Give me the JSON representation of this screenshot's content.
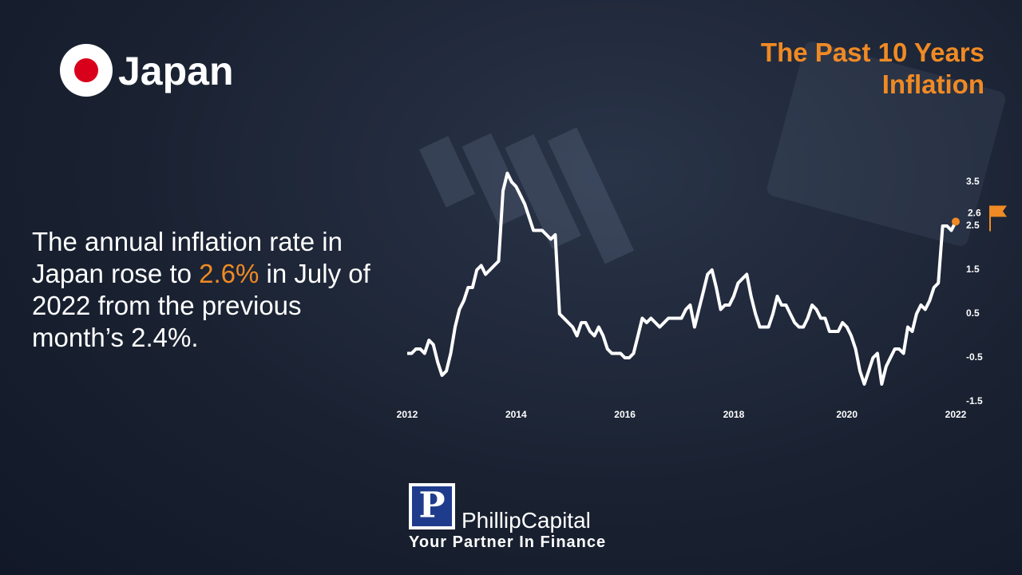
{
  "header": {
    "country": "Japan",
    "title": [
      "The Past 10 Years",
      "Inflation"
    ]
  },
  "body": {
    "parts": [
      "The annual inflation rate in Japan rose to ",
      "2.6%",
      " in July of 2022 from the previous month’s 2.4%."
    ]
  },
  "logo": {
    "mark": "P",
    "name": "PhillipCapital",
    "tagline": "Your Partner In Finance"
  },
  "chart_data": {
    "type": "line",
    "categories": [
      "2012",
      null,
      null,
      null,
      null,
      null,
      null,
      null,
      null,
      null,
      null,
      null,
      null,
      null,
      null,
      null,
      null,
      null,
      null,
      null,
      null,
      null,
      null,
      null,
      null,
      "2014",
      null,
      null,
      null,
      null,
      null,
      null,
      null,
      null,
      null,
      null,
      null,
      null,
      null,
      null,
      null,
      null,
      null,
      null,
      null,
      null,
      null,
      null,
      null,
      null,
      "2016",
      null,
      null,
      null,
      null,
      null,
      null,
      null,
      null,
      null,
      null,
      null,
      null,
      null,
      null,
      null,
      null,
      null,
      null,
      null,
      null,
      null,
      null,
      null,
      null,
      "2018",
      null,
      null,
      null,
      null,
      null,
      null,
      null,
      null,
      null,
      null,
      null,
      null,
      null,
      null,
      null,
      null,
      null,
      null,
      null,
      null,
      null,
      null,
      null,
      null,
      null,
      "2020",
      null,
      null,
      null,
      null,
      null,
      null,
      null,
      null,
      null,
      null,
      null,
      null,
      null,
      null,
      null,
      null,
      null,
      null,
      null,
      null,
      null,
      null,
      null,
      null,
      "2022"
    ],
    "series": [
      {
        "color": "#ffffff",
        "values": [
          -0.4,
          -0.4,
          -0.3,
          -0.3,
          -0.4,
          -0.1,
          -0.2,
          -0.6,
          -0.9,
          -0.8,
          -0.4,
          0.2,
          0.6,
          0.8,
          1.1,
          1.1,
          1.5,
          1.6,
          1.4,
          1.5,
          1.6,
          1.7,
          3.3,
          3.7,
          3.5,
          3.4,
          3.2,
          3.0,
          2.7,
          2.4,
          2.4,
          2.4,
          2.3,
          2.2,
          2.3,
          0.5,
          0.4,
          0.3,
          0.2,
          0,
          0.3,
          0.3,
          0.1,
          0,
          0.2,
          0,
          -0.3,
          -0.4,
          -0.4,
          -0.4,
          -0.5,
          -0.5,
          -0.4,
          0,
          0.4,
          0.3,
          0.4,
          0.3,
          0.2,
          0.3,
          0.4,
          0.4,
          0.4,
          0.4,
          0.6,
          0.7,
          0.2,
          0.6,
          1.0,
          1.4,
          1.5,
          1.1,
          0.6,
          0.7,
          0.7,
          0.9,
          1.2,
          1.3,
          1.4,
          0.9,
          0.5,
          0.2,
          0.2,
          0.2,
          0.5,
          0.9,
          0.7,
          0.7,
          0.5,
          0.3,
          0.2,
          0.2,
          0.4,
          0.7,
          0.6,
          0.4,
          0.4,
          0.1,
          0.1,
          0.1,
          0.3,
          0.2,
          0,
          -0.3,
          -0.8,
          -1.1,
          -0.8,
          -0.5,
          -0.4,
          -1.1,
          -0.7,
          -0.5,
          -0.3,
          -0.3,
          -0.4,
          0.2,
          0.1,
          0.5,
          0.7,
          0.6,
          0.8,
          1.1,
          1.2,
          2.5,
          2.5,
          2.4,
          2.6
        ]
      }
    ],
    "last_point_color": "#f08a24",
    "ylim": [
      -1.5,
      3.8
    ],
    "yticks": [
      3.5,
      2.5,
      1.5,
      0.5,
      -0.5,
      -1.5
    ]
  }
}
